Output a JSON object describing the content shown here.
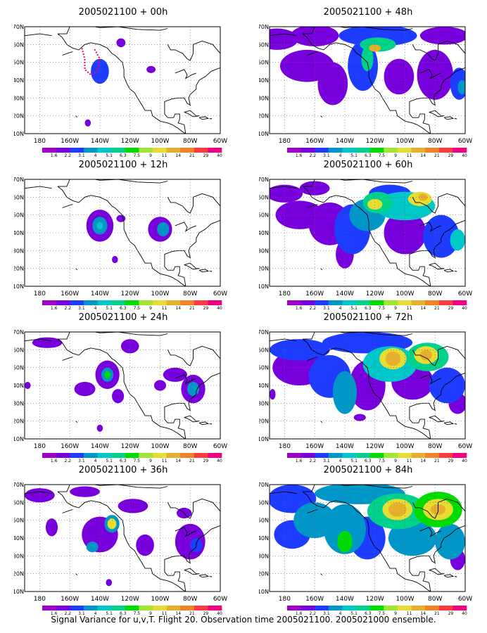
{
  "caption": "Signal Variance for u,v,T. Flight 20. Observation time 2005021100. 2005021000 ensemble.",
  "map": {
    "lat_labels": [
      "70N",
      "60N",
      "50N",
      "40N",
      "30N",
      "20N",
      "10N"
    ],
    "lon_labels": [
      "180",
      "160W",
      "140W",
      "120W",
      "100W",
      "80W",
      "60W"
    ],
    "extent": {
      "lon": [
        -190,
        -60
      ],
      "lat": [
        10,
        70
      ]
    }
  },
  "legend": {
    "labels": [
      "1.6",
      "2.2",
      "3.1",
      "4",
      "5.1",
      "6.3",
      "7.5",
      "9",
      "11",
      "14",
      "21",
      "29",
      "40"
    ],
    "colors": [
      "#a000c8",
      "#7800dc",
      "#1e3cff",
      "#0096c8",
      "#00c8c8",
      "#00d28c",
      "#00dc00",
      "#a0e632",
      "#e6dc32",
      "#e6af2d",
      "#f08228",
      "#fa3c3c",
      "#f00082"
    ]
  },
  "panels": [
    {
      "title": "2005021100 + 00h",
      "blobs": [
        {
          "lon": -140,
          "lat": 45,
          "rx": 6,
          "ry": 7,
          "level": 2
        },
        {
          "lon": -126,
          "lat": 61,
          "rx": 3,
          "ry": 2.5,
          "level": 1
        },
        {
          "lon": -106,
          "lat": 46,
          "rx": 3,
          "ry": 2,
          "level": 1
        },
        {
          "lon": -148,
          "lat": 16,
          "rx": 2,
          "ry": 2,
          "level": 1
        }
      ],
      "path": [
        [
          -152,
          58
        ],
        [
          -150,
          52
        ],
        [
          -150,
          46
        ],
        [
          -146,
          43
        ],
        [
          -142,
          45
        ],
        [
          -140,
          52
        ],
        [
          -144,
          58
        ]
      ]
    },
    {
      "title": "2005021100 + 48h",
      "blobs": [
        {
          "lon": -185,
          "lat": 63,
          "rx": 14,
          "ry": 6,
          "level": 1
        },
        {
          "lon": -160,
          "lat": 65,
          "rx": 16,
          "ry": 6,
          "level": 1
        },
        {
          "lon": -118,
          "lat": 65,
          "rx": 26,
          "ry": 6,
          "level": 2
        },
        {
          "lon": -74,
          "lat": 65,
          "rx": 16,
          "ry": 5,
          "level": 1
        },
        {
          "lon": -165,
          "lat": 48,
          "rx": 18,
          "ry": 9,
          "level": 1
        },
        {
          "lon": -148,
          "lat": 38,
          "rx": 10,
          "ry": 12,
          "level": 1
        },
        {
          "lon": -128,
          "lat": 48,
          "rx": 10,
          "ry": 14,
          "level": 2
        },
        {
          "lon": -125,
          "lat": 52,
          "rx": 4,
          "ry": 7,
          "level": 5
        },
        {
          "lon": -118,
          "lat": 60,
          "rx": 12,
          "ry": 4,
          "level": 5
        },
        {
          "lon": -120,
          "lat": 58,
          "rx": 4,
          "ry": 2,
          "level": 9
        },
        {
          "lon": -104,
          "lat": 42,
          "rx": 10,
          "ry": 10,
          "level": 1
        },
        {
          "lon": -80,
          "lat": 43,
          "rx": 12,
          "ry": 14,
          "level": 1
        },
        {
          "lon": -64,
          "lat": 38,
          "rx": 6,
          "ry": 9,
          "level": 2
        },
        {
          "lon": -62,
          "lat": 36,
          "rx": 3,
          "ry": 4,
          "level": 3
        }
      ],
      "path": []
    },
    {
      "title": "2005021100 + 12h",
      "blobs": [
        {
          "lon": -140,
          "lat": 44,
          "rx": 9,
          "ry": 9,
          "level": 1
        },
        {
          "lon": -140,
          "lat": 44,
          "rx": 5,
          "ry": 5,
          "level": 3
        },
        {
          "lon": -140,
          "lat": 44,
          "rx": 2,
          "ry": 2,
          "level": 4
        },
        {
          "lon": -126,
          "lat": 48,
          "rx": 3,
          "ry": 2,
          "level": 1
        },
        {
          "lon": -100,
          "lat": 42,
          "rx": 8,
          "ry": 7,
          "level": 1
        },
        {
          "lon": -98,
          "lat": 42,
          "rx": 4,
          "ry": 4,
          "level": 3
        },
        {
          "lon": -130,
          "lat": 25,
          "rx": 2,
          "ry": 2,
          "level": 1
        }
      ],
      "path": []
    },
    {
      "title": "2005021100 + 60h",
      "blobs": [
        {
          "lon": -180,
          "lat": 62,
          "rx": 12,
          "ry": 5,
          "level": 1
        },
        {
          "lon": -160,
          "lat": 65,
          "rx": 10,
          "ry": 4,
          "level": 1
        },
        {
          "lon": -170,
          "lat": 50,
          "rx": 16,
          "ry": 8,
          "level": 1
        },
        {
          "lon": -150,
          "lat": 45,
          "rx": 14,
          "ry": 12,
          "level": 1
        },
        {
          "lon": -135,
          "lat": 42,
          "rx": 12,
          "ry": 14,
          "level": 2
        },
        {
          "lon": -140,
          "lat": 28,
          "rx": 6,
          "ry": 8,
          "level": 1
        },
        {
          "lon": -125,
          "lat": 50,
          "rx": 12,
          "ry": 9,
          "level": 3
        },
        {
          "lon": -118,
          "lat": 57,
          "rx": 10,
          "ry": 6,
          "level": 5
        },
        {
          "lon": -120,
          "lat": 56,
          "rx": 5,
          "ry": 3,
          "level": 8
        },
        {
          "lon": -100,
          "lat": 55,
          "rx": 20,
          "ry": 8,
          "level": 4
        },
        {
          "lon": -90,
          "lat": 59,
          "rx": 8,
          "ry": 4,
          "level": 8
        },
        {
          "lon": -88,
          "lat": 60,
          "rx": 3,
          "ry": 2,
          "level": 9
        },
        {
          "lon": -110,
          "lat": 62,
          "rx": 14,
          "ry": 5,
          "level": 2
        },
        {
          "lon": -100,
          "lat": 40,
          "rx": 14,
          "ry": 12,
          "level": 1
        },
        {
          "lon": -76,
          "lat": 38,
          "rx": 12,
          "ry": 12,
          "level": 2
        },
        {
          "lon": -65,
          "lat": 36,
          "rx": 5,
          "ry": 6,
          "level": 4
        }
      ],
      "path": []
    },
    {
      "title": "2005021100 + 24h",
      "blobs": [
        {
          "lon": -175,
          "lat": 64,
          "rx": 10,
          "ry": 3,
          "level": 1
        },
        {
          "lon": -135,
          "lat": 46,
          "rx": 8,
          "ry": 8,
          "level": 1
        },
        {
          "lon": -135,
          "lat": 46,
          "rx": 4,
          "ry": 4,
          "level": 3
        },
        {
          "lon": -135,
          "lat": 46,
          "rx": 2,
          "ry": 2,
          "level": 6
        },
        {
          "lon": -150,
          "lat": 38,
          "rx": 7,
          "ry": 4,
          "level": 1
        },
        {
          "lon": -128,
          "lat": 34,
          "rx": 4,
          "ry": 4,
          "level": 1
        },
        {
          "lon": -120,
          "lat": 62,
          "rx": 6,
          "ry": 4,
          "level": 1
        },
        {
          "lon": -90,
          "lat": 46,
          "rx": 8,
          "ry": 4,
          "level": 1
        },
        {
          "lon": -78,
          "lat": 38,
          "rx": 8,
          "ry": 8,
          "level": 1
        },
        {
          "lon": -78,
          "lat": 38,
          "rx": 4,
          "ry": 4,
          "level": 3
        },
        {
          "lon": -100,
          "lat": 40,
          "rx": 4,
          "ry": 3,
          "level": 1
        },
        {
          "lon": -188,
          "lat": 40,
          "rx": 2,
          "ry": 2,
          "level": 1
        },
        {
          "lon": -140,
          "lat": 16,
          "rx": 2,
          "ry": 2,
          "level": 1
        }
      ],
      "path": []
    },
    {
      "title": "2005021100 + 72h",
      "blobs": [
        {
          "lon": -170,
          "lat": 60,
          "rx": 20,
          "ry": 6,
          "level": 2
        },
        {
          "lon": -125,
          "lat": 64,
          "rx": 30,
          "ry": 6,
          "level": 2
        },
        {
          "lon": -170,
          "lat": 50,
          "rx": 18,
          "ry": 10,
          "level": 1
        },
        {
          "lon": -150,
          "lat": 45,
          "rx": 14,
          "ry": 12,
          "level": 2
        },
        {
          "lon": -140,
          "lat": 36,
          "rx": 8,
          "ry": 12,
          "level": 3
        },
        {
          "lon": -125,
          "lat": 40,
          "rx": 12,
          "ry": 14,
          "level": 1
        },
        {
          "lon": -110,
          "lat": 52,
          "rx": 18,
          "ry": 10,
          "level": 4
        },
        {
          "lon": -108,
          "lat": 55,
          "rx": 9,
          "ry": 6,
          "level": 8
        },
        {
          "lon": -108,
          "lat": 55,
          "rx": 5,
          "ry": 4,
          "level": 9
        },
        {
          "lon": -85,
          "lat": 56,
          "rx": 14,
          "ry": 8,
          "level": 5
        },
        {
          "lon": -86,
          "lat": 57,
          "rx": 8,
          "ry": 5,
          "level": 8
        },
        {
          "lon": -86,
          "lat": 57,
          "rx": 4,
          "ry": 3,
          "level": 9
        },
        {
          "lon": -95,
          "lat": 42,
          "rx": 14,
          "ry": 10,
          "level": 1
        },
        {
          "lon": -72,
          "lat": 40,
          "rx": 12,
          "ry": 10,
          "level": 2
        },
        {
          "lon": -65,
          "lat": 30,
          "rx": 6,
          "ry": 6,
          "level": 1
        },
        {
          "lon": -188,
          "lat": 35,
          "rx": 2,
          "ry": 3,
          "level": 1
        },
        {
          "lon": -130,
          "lat": 22,
          "rx": 4,
          "ry": 2,
          "level": 1
        }
      ],
      "path": []
    },
    {
      "title": "2005021100 + 36h",
      "blobs": [
        {
          "lon": -180,
          "lat": 64,
          "rx": 10,
          "ry": 4,
          "level": 1
        },
        {
          "lon": -150,
          "lat": 66,
          "rx": 10,
          "ry": 3,
          "level": 1
        },
        {
          "lon": -172,
          "lat": 46,
          "rx": 4,
          "ry": 5,
          "level": 1
        },
        {
          "lon": -140,
          "lat": 42,
          "rx": 12,
          "ry": 10,
          "level": 1
        },
        {
          "lon": -132,
          "lat": 48,
          "rx": 5,
          "ry": 5,
          "level": 3
        },
        {
          "lon": -132,
          "lat": 48,
          "rx": 3,
          "ry": 3,
          "level": 8
        },
        {
          "lon": -145,
          "lat": 35,
          "rx": 4,
          "ry": 3,
          "level": 3
        },
        {
          "lon": -118,
          "lat": 58,
          "rx": 10,
          "ry": 4,
          "level": 1
        },
        {
          "lon": -110,
          "lat": 36,
          "rx": 6,
          "ry": 6,
          "level": 1
        },
        {
          "lon": -80,
          "lat": 38,
          "rx": 10,
          "ry": 10,
          "level": 1
        },
        {
          "lon": -76,
          "lat": 36,
          "rx": 4,
          "ry": 4,
          "level": 2
        },
        {
          "lon": -84,
          "lat": 54,
          "rx": 5,
          "ry": 3,
          "level": 1
        },
        {
          "lon": -134,
          "lat": 15,
          "rx": 2,
          "ry": 2,
          "level": 1
        }
      ],
      "path": []
    },
    {
      "title": "2005021100 + 84h",
      "blobs": [
        {
          "lon": -175,
          "lat": 62,
          "rx": 16,
          "ry": 8,
          "level": 2
        },
        {
          "lon": -130,
          "lat": 65,
          "rx": 30,
          "ry": 6,
          "level": 3
        },
        {
          "lon": -175,
          "lat": 42,
          "rx": 12,
          "ry": 8,
          "level": 2
        },
        {
          "lon": -160,
          "lat": 50,
          "rx": 14,
          "ry": 10,
          "level": 3
        },
        {
          "lon": -140,
          "lat": 45,
          "rx": 14,
          "ry": 14,
          "level": 3
        },
        {
          "lon": -140,
          "lat": 38,
          "rx": 5,
          "ry": 6,
          "level": 6
        },
        {
          "lon": -125,
          "lat": 40,
          "rx": 12,
          "ry": 12,
          "level": 2
        },
        {
          "lon": -105,
          "lat": 55,
          "rx": 20,
          "ry": 10,
          "level": 5
        },
        {
          "lon": -105,
          "lat": 56,
          "rx": 10,
          "ry": 6,
          "level": 8
        },
        {
          "lon": -105,
          "lat": 56,
          "rx": 6,
          "ry": 4,
          "level": 9
        },
        {
          "lon": -78,
          "lat": 56,
          "rx": 16,
          "ry": 10,
          "level": 6
        },
        {
          "lon": -78,
          "lat": 56,
          "rx": 10,
          "ry": 6,
          "level": 8
        },
        {
          "lon": -78,
          "lat": 56,
          "rx": 5,
          "ry": 3,
          "level": 9
        },
        {
          "lon": -95,
          "lat": 40,
          "rx": 16,
          "ry": 10,
          "level": 3
        },
        {
          "lon": -70,
          "lat": 38,
          "rx": 10,
          "ry": 10,
          "level": 3
        },
        {
          "lon": -65,
          "lat": 28,
          "rx": 5,
          "ry": 6,
          "level": 1
        }
      ],
      "path": []
    }
  ]
}
